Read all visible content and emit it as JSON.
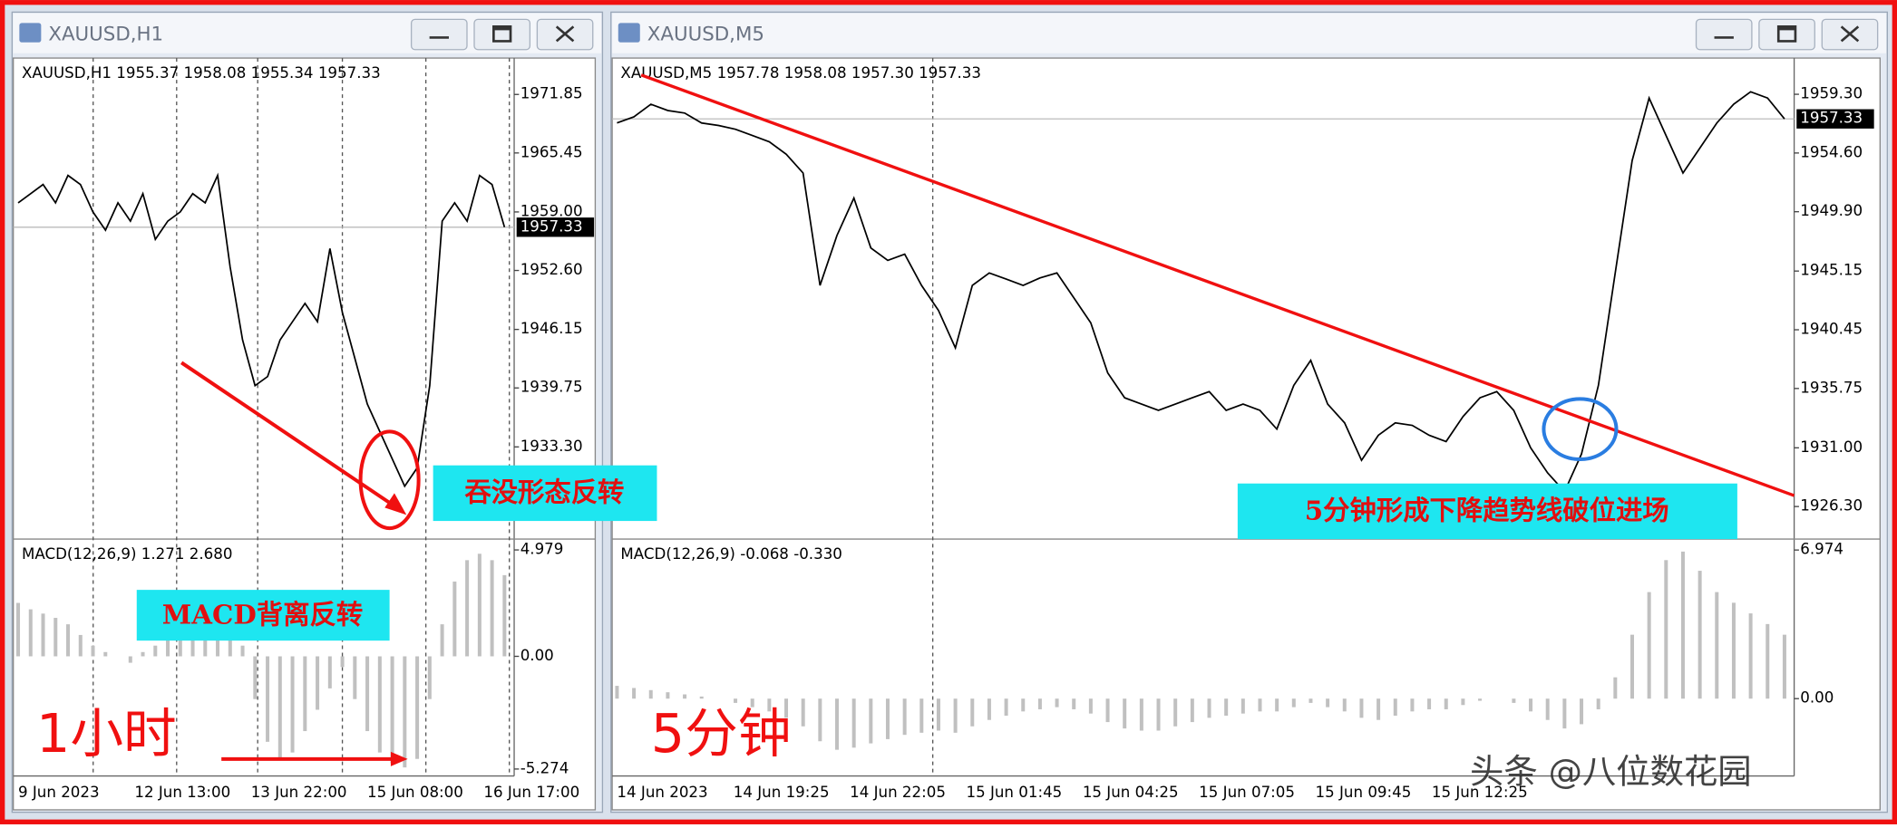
{
  "windows": [
    {
      "title": "XAUUSD,H1",
      "quote": "XAUUSD,H1  1955.37 1958.08 1955.34 1957.33",
      "ylim": [
        1923.35,
        1975.83
      ],
      "yticks": [
        1971.85,
        1965.45,
        {
          "value": 1959.0,
          "label": "1959.00"
        },
        {
          "value": 1952.6,
          "label": "1952.60"
        },
        1946.15,
        1939.75,
        {
          "value": 1933.3,
          "label": "1933.30"
        }
      ],
      "current": 1957.33,
      "close": [
        1960,
        1961,
        1962,
        1960,
        1963,
        1962,
        1959,
        1957,
        1960,
        1958,
        1961,
        1956,
        1958,
        1959,
        1961,
        1960,
        1963,
        1953,
        1945,
        1940,
        1941,
        1945,
        1947,
        1949,
        1947,
        1955,
        1948,
        1943,
        1938,
        1935,
        1932,
        1929,
        1931,
        1940,
        1958,
        1960,
        1958,
        1963,
        1962,
        1957.33
      ],
      "macd": {
        "label": "MACD(12,26,9) 1.271 2.680",
        "ylim": [
          -5.6,
          5.43
        ],
        "yticks": [
          4.979,
          {
            "value": 0,
            "label": "0.00"
          },
          -5.274
        ],
        "values": [
          2.5,
          2.2,
          2,
          1.8,
          1.5,
          1,
          0.5,
          0.2,
          0,
          -0.3,
          0.2,
          0.5,
          0.8,
          1,
          1.2,
          1.5,
          1.8,
          2,
          0.5,
          -2,
          -4,
          -4.8,
          -4.5,
          -3.5,
          -2.5,
          -1.5,
          -0.5,
          -2,
          -3.5,
          -4.5,
          -5,
          -5.2,
          -4.8,
          -2,
          1.5,
          3.5,
          4.5,
          4.8,
          4.5,
          3.8
        ]
      },
      "time_labels": [
        "9 Jun 2023",
        "12 Jun 13:00",
        "13 Jun 22:00",
        "15 Jun 08:00",
        "16 Jun 17:00"
      ]
    },
    {
      "title": "XAUUSD,M5",
      "quote": "XAUUSD,M5  1957.78 1958.08 1957.30 1957.33",
      "ylim": [
        1923.79,
        1962.2
      ],
      "yticks": [
        {
          "value": 1959.3,
          "label": "1959.30"
        },
        {
          "value": 1954.6,
          "label": "1954.60"
        },
        {
          "value": 1949.9,
          "label": "1949.90"
        },
        1945.15,
        1940.45,
        1935.75,
        {
          "value": 1931.0,
          "label": "1931.00"
        },
        {
          "value": 1926.3,
          "label": "1926.30"
        }
      ],
      "current": 1957.33,
      "close": [
        1957,
        1957.5,
        1958.5,
        1958,
        1957.8,
        1957,
        1956.8,
        1956.5,
        1956,
        1955.5,
        1954.5,
        1953,
        1944,
        1948,
        1951,
        1947,
        1946,
        1946.5,
        1944,
        1942,
        1939,
        1944,
        1945,
        1944.5,
        1944,
        1944.6,
        1945,
        1943,
        1941,
        1937,
        1935,
        1934.5,
        1934,
        1934.5,
        1935,
        1935.5,
        1934,
        1934.5,
        1934,
        1932.5,
        1936,
        1938,
        1934.5,
        1933,
        1930,
        1932,
        1933,
        1932.8,
        1932,
        1931.5,
        1933.5,
        1935,
        1935.5,
        1934,
        1931,
        1929,
        1927.5,
        1930.5,
        1936,
        1945,
        1954,
        1959,
        1956,
        1953,
        1955,
        1957,
        1958.5,
        1959.5,
        1959,
        1957.33
      ],
      "macd": {
        "label": "MACD(12,26,9) -0.068 -0.330",
        "ylim": [
          -3.63,
          7.43
        ],
        "yticks": [
          6.974,
          {
            "value": 0,
            "label": "0.00"
          }
        ],
        "values": [
          0.6,
          0.5,
          0.4,
          0.3,
          0.2,
          0.1,
          0,
          -0.2,
          -0.4,
          -0.6,
          -0.9,
          -1.3,
          -2,
          -2.4,
          -2.3,
          -2.1,
          -1.9,
          -1.7,
          -1.6,
          -1.5,
          -1.6,
          -1.3,
          -1,
          -0.8,
          -0.6,
          -0.5,
          -0.4,
          -0.5,
          -0.7,
          -1.1,
          -1.4,
          -1.5,
          -1.5,
          -1.3,
          -1.1,
          -0.9,
          -0.8,
          -0.7,
          -0.6,
          -0.6,
          -0.4,
          -0.2,
          -0.4,
          -0.6,
          -0.9,
          -1,
          -0.8,
          -0.6,
          -0.5,
          -0.5,
          -0.3,
          -0.1,
          0,
          -0.2,
          -0.6,
          -1,
          -1.4,
          -1.2,
          -0.5,
          1,
          3,
          5,
          6.5,
          6.9,
          6,
          5,
          4.5,
          4,
          3.5,
          3
        ]
      },
      "time_labels": [
        "14 Jun 2023",
        "14 Jun 19:25",
        "14 Jun 22:05",
        "15 Jun 01:45",
        "15 Jun 04:25",
        "15 Jun 07:05",
        "15 Jun 09:45",
        "15 Jun 12:25"
      ]
    }
  ],
  "annotations": {
    "engulfing": "吞没形态反转",
    "macd_divergence": "MACD背离反转",
    "h1": "1小时",
    "m5": "5分钟",
    "breakout": "5分钟形成下降趋势线破位进场"
  },
  "watermark": "头条 @八位数花园"
}
